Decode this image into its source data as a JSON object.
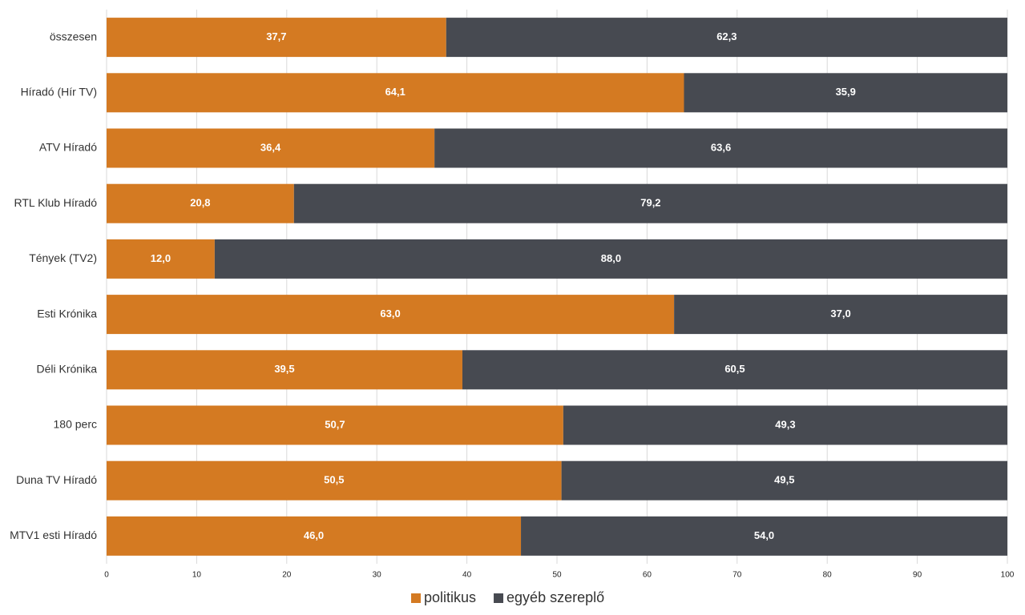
{
  "chart_data": {
    "type": "stacked_barh",
    "categories": [
      "összesen",
      "Híradó (Hír TV)",
      "ATV Híradó",
      "RTL Klub Híradó",
      "Tények (TV2)",
      "Esti Krónika",
      "Déli Krónika",
      "180 perc",
      "Duna TV Híradó",
      "MTV1 esti Híradó"
    ],
    "series": [
      {
        "name": "politikus",
        "color": "#d47a22",
        "values": [
          37.7,
          64.1,
          36.4,
          20.8,
          12.0,
          63.0,
          39.5,
          50.7,
          50.5,
          46.0
        ],
        "value_labels": [
          "37,7",
          "64,1",
          "36,4",
          "20,8",
          "12,0",
          "63,0",
          "39,5",
          "50,7",
          "50,5",
          "46,0"
        ]
      },
      {
        "name": "egyéb szereplő",
        "color": "#474a51",
        "values": [
          62.3,
          35.9,
          63.6,
          79.2,
          88.0,
          37.0,
          60.5,
          49.3,
          49.5,
          54.0
        ],
        "value_labels": [
          "62,3",
          "35,9",
          "63,6",
          "79,2",
          "88,0",
          "37,0",
          "60,5",
          "49,3",
          "49,5",
          "54,0"
        ]
      }
    ],
    "xlim": [
      0,
      100
    ],
    "xticks": [
      0,
      10,
      20,
      30,
      40,
      50,
      60,
      70,
      80,
      90,
      100
    ],
    "grid": true,
    "legend": "bottom"
  }
}
